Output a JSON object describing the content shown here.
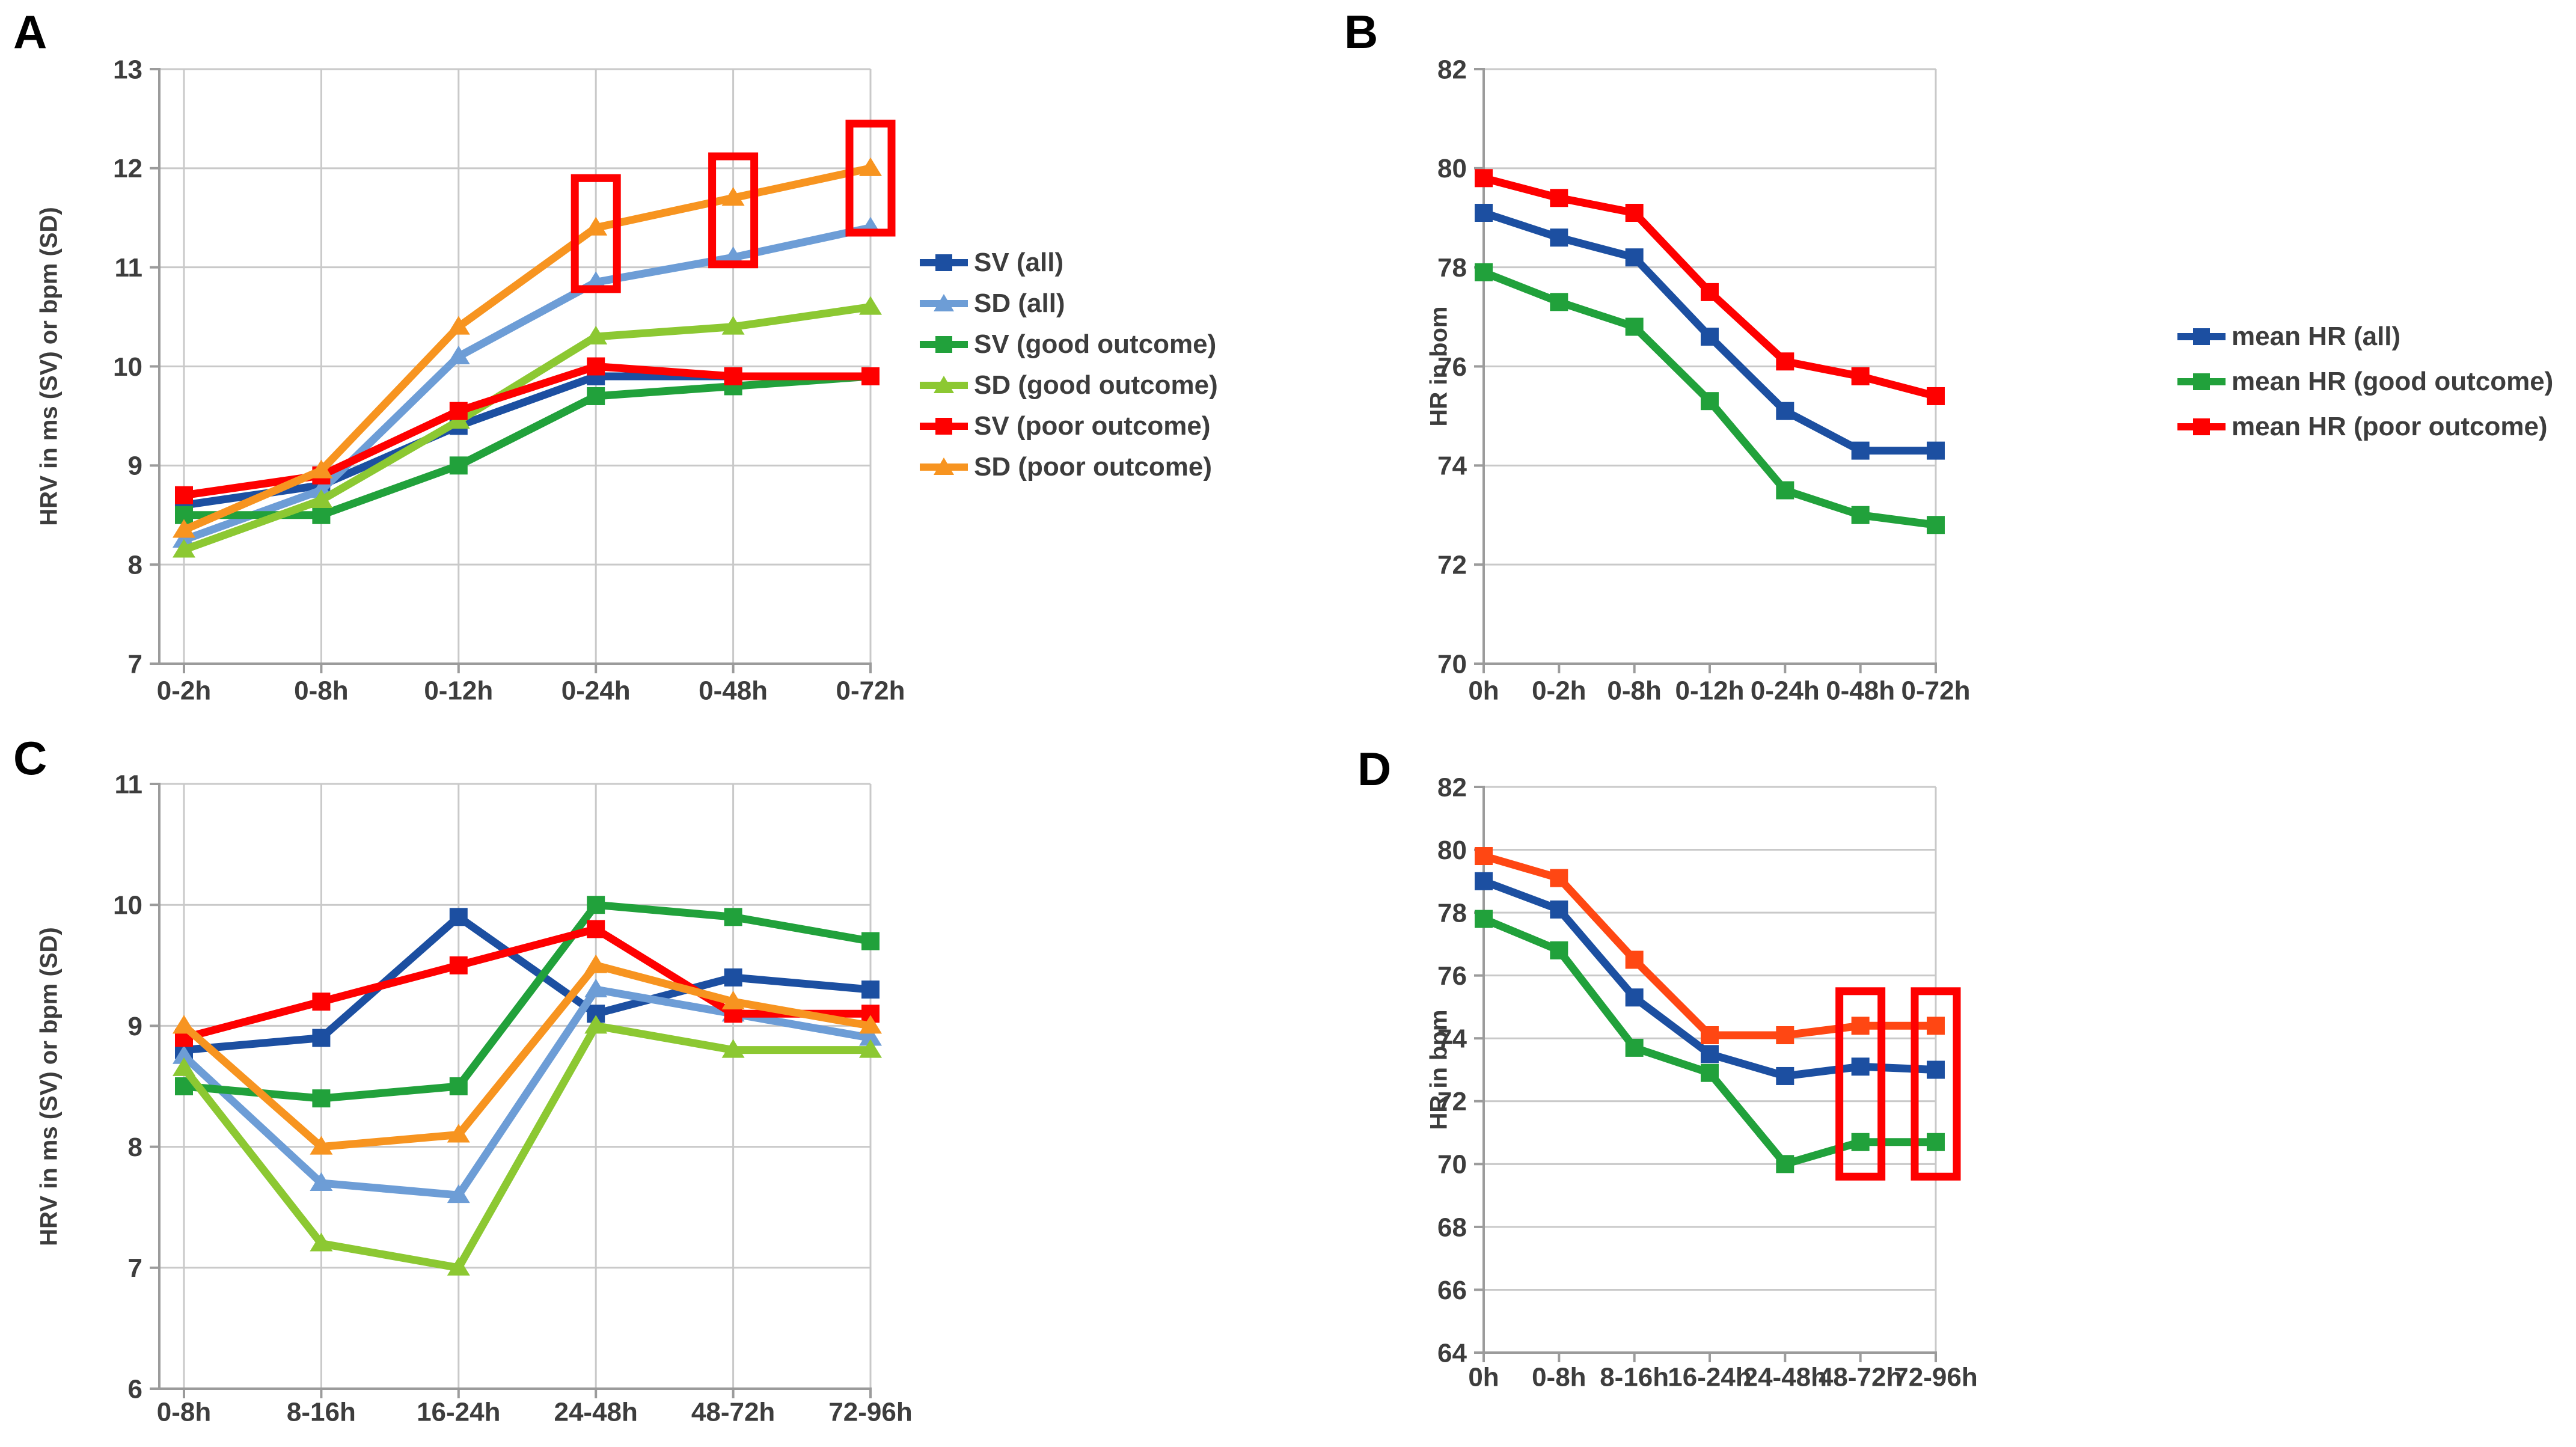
{
  "figure": {
    "background_color": "#FFFFFF",
    "annotation_color": "#FE0000",
    "panel_labels": {
      "a": "A",
      "b": "B",
      "c": "C",
      "d": "D"
    }
  },
  "chart_data": [
    {
      "id": "A",
      "panel_label": "A",
      "type": "line",
      "ylabel": "HRV in ms (SV) or bpm (SD)",
      "xlabel": "",
      "ylim": [
        7,
        13
      ],
      "yticks": [
        7,
        8,
        9,
        10,
        11,
        12,
        13
      ],
      "grid": "horizontal+vertical",
      "legend_position": "right",
      "categories": [
        "0-2h",
        "0-8h",
        "0-12h",
        "0-24h",
        "0-48h",
        "0-72h"
      ],
      "series": [
        {
          "name": "SV (all)",
          "color": "#1C4FA1",
          "marker": "square",
          "values": [
            8.6,
            8.8,
            9.4,
            9.9,
            9.9,
            9.9
          ]
        },
        {
          "name": "SD (all)",
          "color": "#6D9DD6",
          "marker": "triangle",
          "values": [
            8.25,
            8.75,
            10.1,
            10.85,
            11.1,
            11.4
          ]
        },
        {
          "name": "SV (good outcome)",
          "color": "#21A13B",
          "marker": "square",
          "values": [
            8.5,
            8.5,
            9.0,
            9.7,
            9.8,
            9.9
          ]
        },
        {
          "name": "SD (good outcome)",
          "color": "#8CC832",
          "marker": "triangle",
          "values": [
            8.15,
            8.65,
            9.45,
            10.3,
            10.4,
            10.6
          ]
        },
        {
          "name": "SV (poor outcome)",
          "color": "#FE0000",
          "marker": "square",
          "values": [
            8.7,
            8.9,
            9.55,
            10.0,
            9.9,
            9.9
          ]
        },
        {
          "name": "SD (poor outcome)",
          "color": "#F79420",
          "marker": "triangle",
          "values": [
            8.35,
            8.95,
            10.4,
            11.4,
            11.7,
            12.0
          ]
        }
      ],
      "annotations": [
        {
          "category": "0-24h",
          "value_range": [
            10.78,
            11.9
          ]
        },
        {
          "category": "0-48h",
          "value_range": [
            11.03,
            12.12
          ]
        },
        {
          "category": "0-72h",
          "value_range": [
            11.35,
            12.45
          ]
        }
      ]
    },
    {
      "id": "B",
      "panel_label": "B",
      "type": "line",
      "ylabel": "HR in bom",
      "xlabel": "",
      "ylim": [
        70,
        82
      ],
      "yticks": [
        70,
        72,
        74,
        76,
        78,
        80,
        82
      ],
      "grid": "horizontal",
      "legend_position": "right",
      "categories": [
        "0h",
        "0-2h",
        "0-8h",
        "0-12h",
        "0-24h",
        "0-48h",
        "0-72h"
      ],
      "series": [
        {
          "name": "mean HR (all)",
          "color": "#1C4FA1",
          "marker": "square",
          "values": [
            79.1,
            78.6,
            78.2,
            76.6,
            75.1,
            74.3,
            74.3
          ]
        },
        {
          "name": "mean HR (good outcome)",
          "color": "#21A13B",
          "marker": "square",
          "values": [
            77.9,
            77.3,
            76.8,
            75.3,
            73.5,
            73.0,
            72.8
          ]
        },
        {
          "name": "mean HR (poor outcome)",
          "color": "#FE0000",
          "marker": "square",
          "values": [
            79.8,
            79.4,
            79.1,
            77.5,
            76.1,
            75.8,
            75.4
          ]
        }
      ],
      "annotations": []
    },
    {
      "id": "C",
      "panel_label": "C",
      "type": "line",
      "ylabel": "HRV in ms (SV) or bpm (SD)",
      "xlabel": "",
      "ylim": [
        6,
        11
      ],
      "yticks": [
        6,
        7,
        8,
        9,
        10,
        11
      ],
      "grid": "horizontal+vertical",
      "legend_position": "none",
      "categories": [
        "0-8h",
        "8-16h",
        "16-24h",
        "24-48h",
        "48-72h",
        "72-96h"
      ],
      "series": [
        {
          "name": "SV (all)",
          "color": "#1C4FA1",
          "marker": "square",
          "values": [
            8.8,
            8.9,
            9.9,
            9.1,
            9.4,
            9.3
          ]
        },
        {
          "name": "SD (all)",
          "color": "#6D9DD6",
          "marker": "triangle",
          "values": [
            8.75,
            7.7,
            7.6,
            9.3,
            9.1,
            8.9
          ]
        },
        {
          "name": "SV (good outcome)",
          "color": "#21A13B",
          "marker": "square",
          "values": [
            8.5,
            8.4,
            8.5,
            10.0,
            9.9,
            9.7
          ]
        },
        {
          "name": "SD (good outcome)",
          "color": "#8CC832",
          "marker": "triangle",
          "values": [
            8.65,
            7.2,
            7.0,
            9.0,
            8.8,
            8.8
          ]
        },
        {
          "name": "SV (poor outcome)",
          "color": "#FE0000",
          "marker": "square",
          "values": [
            8.9,
            9.2,
            9.5,
            9.8,
            9.1,
            9.1
          ]
        },
        {
          "name": "SD (poor outcome)",
          "color": "#F79420",
          "marker": "triangle",
          "values": [
            9.0,
            8.0,
            8.1,
            9.5,
            9.2,
            9.0
          ]
        }
      ],
      "annotations": []
    },
    {
      "id": "D",
      "panel_label": "D",
      "type": "line",
      "ylabel": "HR in bpm",
      "xlabel": "",
      "ylim": [
        64,
        82
      ],
      "yticks": [
        64,
        66,
        68,
        70,
        72,
        74,
        76,
        78,
        80,
        82
      ],
      "grid": "horizontal",
      "legend_position": "none",
      "categories": [
        "0h",
        "0-8h",
        "8-16h",
        "16-24h",
        "24-48h",
        "48-72h",
        "72-96h"
      ],
      "series": [
        {
          "name": "mean HR (all)",
          "color": "#1C4FA1",
          "marker": "square",
          "values": [
            79.0,
            78.1,
            75.3,
            73.5,
            72.8,
            73.1,
            73.0
          ]
        },
        {
          "name": "mean HR (good outcome)",
          "color": "#21A13B",
          "marker": "square",
          "values": [
            77.8,
            76.8,
            73.7,
            72.9,
            70.0,
            70.7,
            70.7
          ]
        },
        {
          "name": "mean HR (poor outcome)",
          "color": "#FF4713",
          "marker": "square",
          "values": [
            79.8,
            79.1,
            76.5,
            74.1,
            74.1,
            74.4,
            74.4
          ]
        }
      ],
      "annotations": [
        {
          "category": "48-72h",
          "value_range": [
            69.6,
            75.5
          ]
        },
        {
          "category": "72-96h",
          "value_range": [
            69.6,
            75.5
          ]
        }
      ]
    }
  ]
}
